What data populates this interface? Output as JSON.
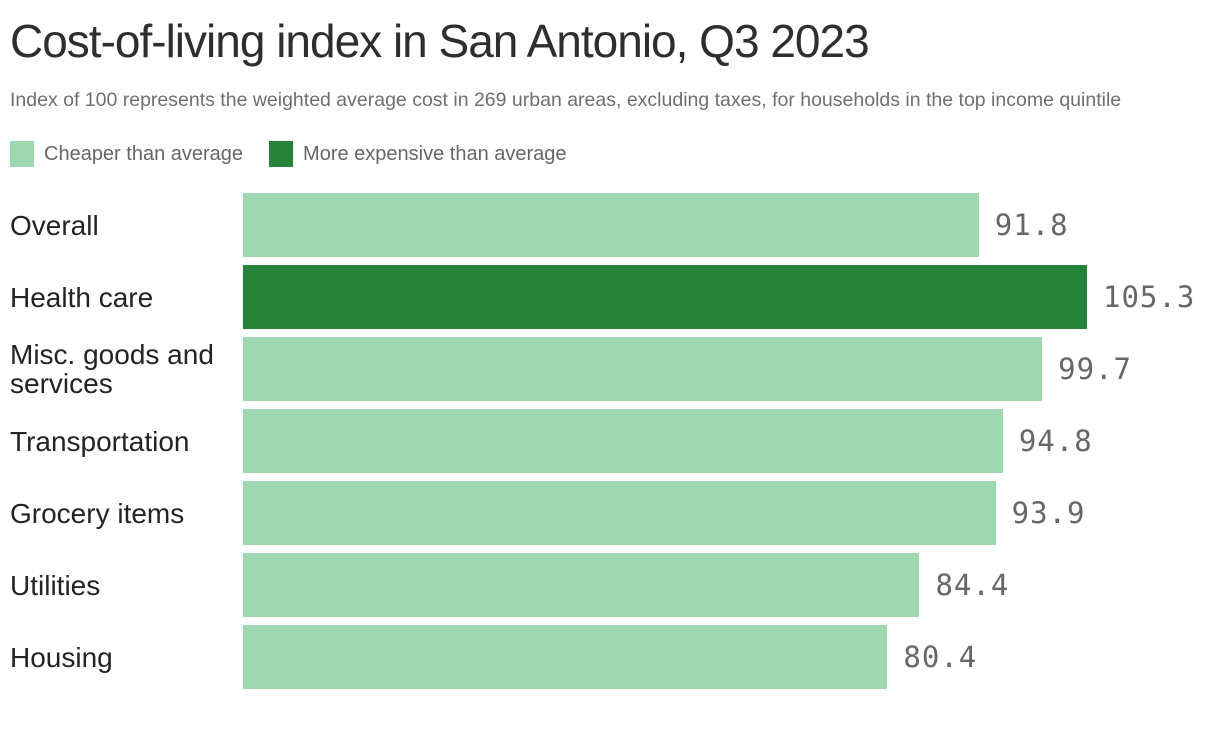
{
  "header": {
    "title": "Cost-of-living index in San Antonio, Q3 2023",
    "subtitle": "Index of 100 represents the weighted average cost in 269 urban areas, excluding taxes, for households in the top income quintile"
  },
  "legend": {
    "items": [
      {
        "key": "cheaper",
        "label": "Cheaper than average",
        "color": "#9ed8b1"
      },
      {
        "key": "expensive",
        "label": "More expensive than average",
        "color": "#268139"
      }
    ]
  },
  "chart_data": {
    "type": "bar",
    "orientation": "horizontal",
    "title": "Cost-of-living index in San Antonio, Q3 2023",
    "subtitle": "Index of 100 represents the weighted average cost in 269 urban areas, excluding taxes, for households in the top income quintile",
    "categories": [
      "Overall",
      "Health care",
      "Misc. goods and services",
      "Transportation",
      "Grocery items",
      "Utilities",
      "Housing"
    ],
    "values": [
      91.8,
      105.3,
      99.7,
      94.8,
      93.9,
      84.4,
      80.4
    ],
    "bar_color_keys": [
      "cheaper",
      "expensive",
      "cheaper",
      "cheaper",
      "cheaper",
      "cheaper",
      "cheaper"
    ],
    "colors": {
      "cheaper": "#9ed8b1",
      "expensive": "#268139"
    },
    "value_label_color": "#676767",
    "reference_index": 100,
    "xlim": [
      0,
      105.3
    ],
    "grid": false,
    "legend_position": "top",
    "legend_entries": [
      "Cheaper than average",
      "More expensive than average"
    ]
  }
}
